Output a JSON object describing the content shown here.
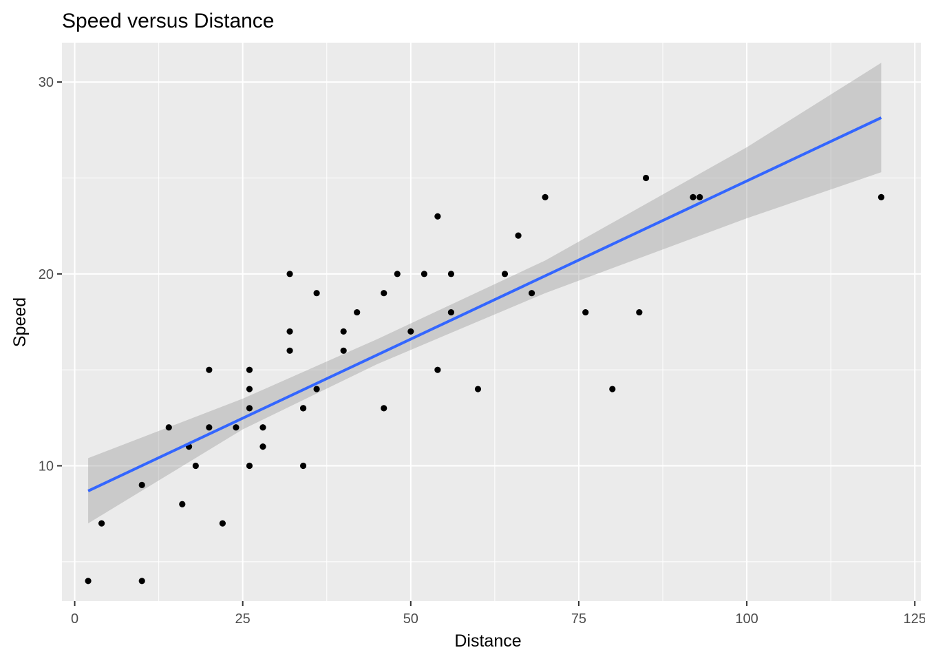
{
  "chart_data": {
    "type": "scatter",
    "title": "Speed versus Distance",
    "xlabel": "Distance",
    "ylabel": "Speed",
    "xlim": [
      -1.9,
      125.9
    ],
    "ylim": [
      2.95,
      32.05
    ],
    "x_ticks": [
      0,
      25,
      50,
      75,
      100,
      125
    ],
    "y_ticks": [
      10,
      20,
      30
    ],
    "x_tick_labels": [
      "0",
      "25",
      "50",
      "75",
      "100",
      "125"
    ],
    "y_tick_labels": [
      "10",
      "20",
      "30"
    ],
    "grid": true,
    "legend": "none",
    "points": [
      {
        "x": 2,
        "y": 4
      },
      {
        "x": 10,
        "y": 4
      },
      {
        "x": 4,
        "y": 7
      },
      {
        "x": 22,
        "y": 7
      },
      {
        "x": 16,
        "y": 8
      },
      {
        "x": 10,
        "y": 9
      },
      {
        "x": 18,
        "y": 10
      },
      {
        "x": 26,
        "y": 10
      },
      {
        "x": 34,
        "y": 10
      },
      {
        "x": 17,
        "y": 11
      },
      {
        "x": 28,
        "y": 11
      },
      {
        "x": 14,
        "y": 12
      },
      {
        "x": 20,
        "y": 12
      },
      {
        "x": 24,
        "y": 12
      },
      {
        "x": 28,
        "y": 12
      },
      {
        "x": 26,
        "y": 13
      },
      {
        "x": 34,
        "y": 13
      },
      {
        "x": 34,
        "y": 13
      },
      {
        "x": 46,
        "y": 13
      },
      {
        "x": 26,
        "y": 14
      },
      {
        "x": 36,
        "y": 14
      },
      {
        "x": 60,
        "y": 14
      },
      {
        "x": 80,
        "y": 14
      },
      {
        "x": 20,
        "y": 15
      },
      {
        "x": 26,
        "y": 15
      },
      {
        "x": 54,
        "y": 15
      },
      {
        "x": 32,
        "y": 16
      },
      {
        "x": 40,
        "y": 16
      },
      {
        "x": 32,
        "y": 17
      },
      {
        "x": 40,
        "y": 17
      },
      {
        "x": 50,
        "y": 17
      },
      {
        "x": 42,
        "y": 18
      },
      {
        "x": 56,
        "y": 18
      },
      {
        "x": 76,
        "y": 18
      },
      {
        "x": 84,
        "y": 18
      },
      {
        "x": 36,
        "y": 19
      },
      {
        "x": 46,
        "y": 19
      },
      {
        "x": 68,
        "y": 19
      },
      {
        "x": 32,
        "y": 20
      },
      {
        "x": 48,
        "y": 20
      },
      {
        "x": 52,
        "y": 20
      },
      {
        "x": 56,
        "y": 20
      },
      {
        "x": 64,
        "y": 20
      },
      {
        "x": 66,
        "y": 22
      },
      {
        "x": 54,
        "y": 23
      },
      {
        "x": 70,
        "y": 24
      },
      {
        "x": 92,
        "y": 24
      },
      {
        "x": 93,
        "y": 24
      },
      {
        "x": 120,
        "y": 24
      },
      {
        "x": 85,
        "y": 25
      }
    ],
    "fit": {
      "method": "lm",
      "x_range": [
        2,
        120
      ],
      "line": [
        [
          2,
          8.69
        ],
        [
          120,
          28.14
        ]
      ],
      "band": [
        {
          "x": 2,
          "lower": 7.0,
          "upper": 10.4
        },
        {
          "x": 25,
          "lower": 11.9,
          "upper": 13.5
        },
        {
          "x": 45,
          "lower": 15.3,
          "upper": 16.6
        },
        {
          "x": 70,
          "lower": 19.0,
          "upper": 20.7
        },
        {
          "x": 100,
          "lower": 22.9,
          "upper": 26.6
        },
        {
          "x": 120,
          "lower": 25.3,
          "upper": 31.0
        }
      ]
    },
    "colors": {
      "panel": "#ebebeb",
      "grid": "#ffffff",
      "point": "#000000",
      "fit_line": "#3366ff",
      "band": "#999999"
    }
  }
}
